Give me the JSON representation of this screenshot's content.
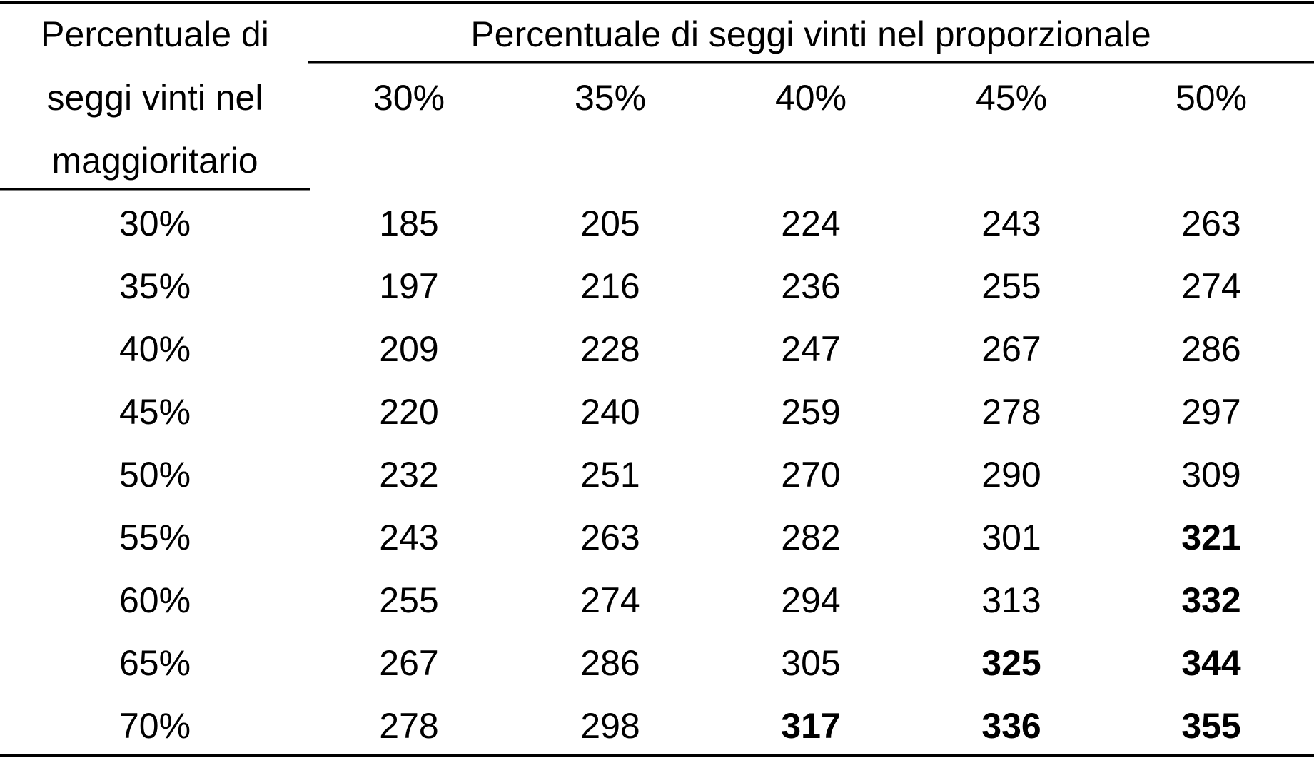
{
  "table": {
    "row_header": [
      "Percentuale di",
      "seggi vinti nel",
      "maggioritario"
    ],
    "column_group_header": "Percentuale di seggi vinti nel proporzionale",
    "columns": [
      "30%",
      "35%",
      "40%",
      "45%",
      "50%"
    ],
    "rows": [
      {
        "label": "30%",
        "values": [
          185,
          205,
          224,
          243,
          263
        ]
      },
      {
        "label": "35%",
        "values": [
          197,
          216,
          236,
          255,
          274
        ]
      },
      {
        "label": "40%",
        "values": [
          209,
          228,
          247,
          267,
          286
        ]
      },
      {
        "label": "45%",
        "values": [
          220,
          240,
          259,
          278,
          297
        ]
      },
      {
        "label": "50%",
        "values": [
          232,
          251,
          270,
          290,
          309
        ]
      },
      {
        "label": "55%",
        "values": [
          243,
          263,
          282,
          301,
          321
        ]
      },
      {
        "label": "60%",
        "values": [
          255,
          274,
          294,
          313,
          332
        ]
      },
      {
        "label": "65%",
        "values": [
          267,
          286,
          305,
          325,
          344
        ]
      },
      {
        "label": "70%",
        "values": [
          278,
          298,
          317,
          336,
          355
        ]
      }
    ],
    "bold": [
      [
        5,
        4
      ],
      [
        6,
        4
      ],
      [
        7,
        3
      ],
      [
        7,
        4
      ],
      [
        8,
        2
      ],
      [
        8,
        3
      ],
      [
        8,
        4
      ]
    ]
  }
}
